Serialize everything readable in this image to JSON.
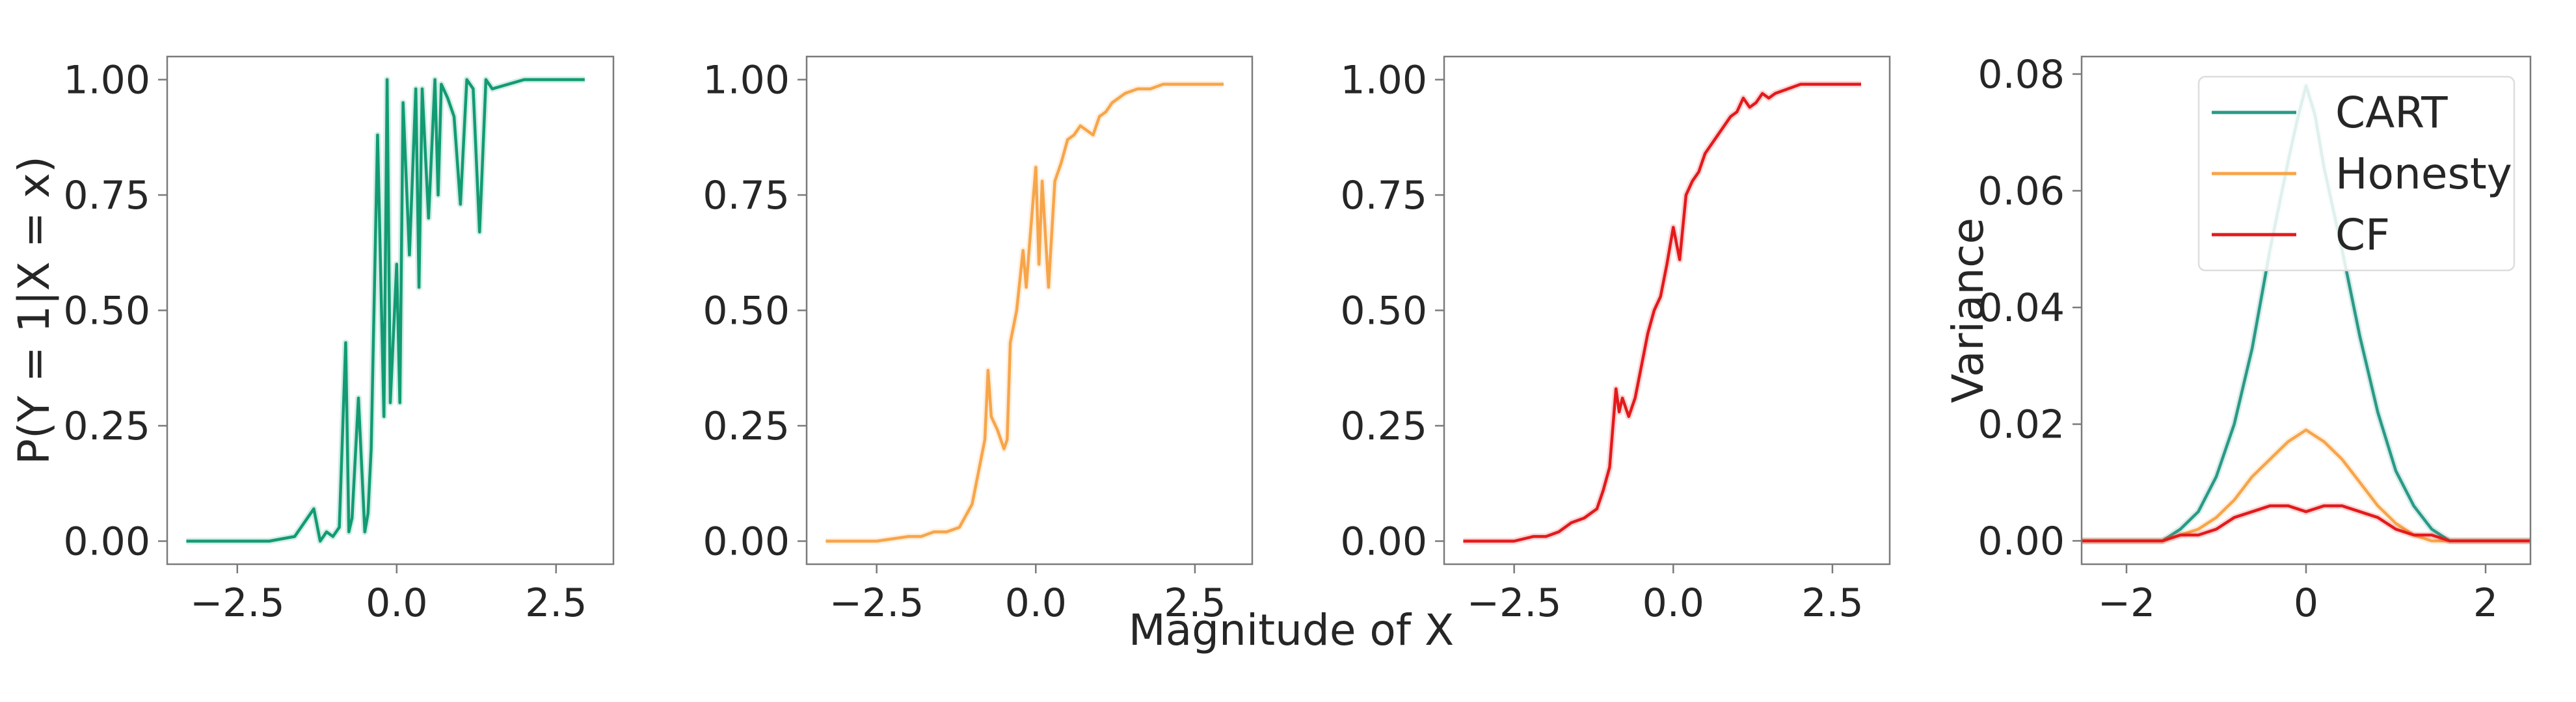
{
  "figure": {
    "shared_xlabel": "Magnitude of X"
  },
  "chart_data": [
    {
      "type": "line",
      "panel": "cart",
      "ylabel": "P(Y = 1|X = x)",
      "xlim": [
        -3.6,
        3.4
      ],
      "ylim": [
        -0.05,
        1.05
      ],
      "xticks": [
        -2.5,
        0.0,
        2.5
      ],
      "xtick_labels": [
        "−2.5",
        "0.0",
        "2.5"
      ],
      "yticks": [
        0.0,
        0.25,
        0.5,
        0.75,
        1.0
      ],
      "ytick_labels": [
        "0.00",
        "0.25",
        "0.50",
        "0.75",
        "1.00"
      ],
      "grid": false,
      "series": [
        {
          "color": "#129b73",
          "x": [
            -3.3,
            -2.0,
            -1.6,
            -1.3,
            -1.2,
            -1.1,
            -1.0,
            -0.9,
            -0.8,
            -0.75,
            -0.7,
            -0.6,
            -0.5,
            -0.45,
            -0.4,
            -0.3,
            -0.2,
            -0.15,
            -0.1,
            0.0,
            0.05,
            0.1,
            0.2,
            0.3,
            0.35,
            0.4,
            0.5,
            0.6,
            0.65,
            0.7,
            0.8,
            0.9,
            1.0,
            1.1,
            1.2,
            1.3,
            1.4,
            1.5,
            2.0,
            2.5,
            2.95
          ],
          "y": [
            0.0,
            0.0,
            0.01,
            0.07,
            0.0,
            0.02,
            0.01,
            0.03,
            0.43,
            0.02,
            0.05,
            0.31,
            0.02,
            0.06,
            0.2,
            0.88,
            0.27,
            1.0,
            0.3,
            0.6,
            0.3,
            0.95,
            0.62,
            0.98,
            0.55,
            0.98,
            0.7,
            1.0,
            0.75,
            0.99,
            0.96,
            0.92,
            0.73,
            1.0,
            0.98,
            0.67,
            1.0,
            0.98,
            1.0,
            1.0,
            1.0
          ]
        }
      ]
    },
    {
      "type": "line",
      "panel": "honesty",
      "xlim": [
        -3.6,
        3.4
      ],
      "ylim": [
        -0.05,
        1.05
      ],
      "xticks": [
        -2.5,
        0.0,
        2.5
      ],
      "xtick_labels": [
        "−2.5",
        "0.0",
        "2.5"
      ],
      "yticks": [
        0.0,
        0.25,
        0.5,
        0.75,
        1.0
      ],
      "ytick_labels": [
        "0.00",
        "0.25",
        "0.50",
        "0.75",
        "1.00"
      ],
      "grid": false,
      "series": [
        {
          "color": "#f7a54a",
          "x": [
            -3.3,
            -2.5,
            -2.0,
            -1.8,
            -1.6,
            -1.4,
            -1.2,
            -1.0,
            -0.9,
            -0.8,
            -0.75,
            -0.7,
            -0.6,
            -0.5,
            -0.45,
            -0.4,
            -0.3,
            -0.2,
            -0.15,
            -0.1,
            0.0,
            0.05,
            0.1,
            0.2,
            0.3,
            0.4,
            0.5,
            0.6,
            0.7,
            0.8,
            0.9,
            1.0,
            1.1,
            1.2,
            1.3,
            1.4,
            1.6,
            1.8,
            2.0,
            2.2,
            2.5,
            2.95
          ],
          "y": [
            0.0,
            0.0,
            0.01,
            0.01,
            0.02,
            0.02,
            0.03,
            0.08,
            0.15,
            0.22,
            0.37,
            0.27,
            0.24,
            0.2,
            0.22,
            0.43,
            0.5,
            0.63,
            0.55,
            0.64,
            0.81,
            0.6,
            0.78,
            0.55,
            0.78,
            0.82,
            0.87,
            0.88,
            0.9,
            0.89,
            0.88,
            0.92,
            0.93,
            0.95,
            0.96,
            0.97,
            0.98,
            0.98,
            0.99,
            0.99,
            0.99,
            0.99
          ]
        }
      ]
    },
    {
      "type": "line",
      "panel": "cf",
      "xlim": [
        -3.6,
        3.4
      ],
      "ylim": [
        -0.05,
        1.05
      ],
      "xticks": [
        -2.5,
        0.0,
        2.5
      ],
      "xtick_labels": [
        "−2.5",
        "0.0",
        "2.5"
      ],
      "yticks": [
        0.0,
        0.25,
        0.5,
        0.75,
        1.0
      ],
      "ytick_labels": [
        "0.00",
        "0.25",
        "0.50",
        "0.75",
        "1.00"
      ],
      "grid": false,
      "series": [
        {
          "color": "#e31a1c",
          "x": [
            -3.3,
            -2.5,
            -2.2,
            -2.0,
            -1.8,
            -1.6,
            -1.4,
            -1.2,
            -1.1,
            -1.0,
            -0.9,
            -0.85,
            -0.8,
            -0.7,
            -0.6,
            -0.5,
            -0.4,
            -0.3,
            -0.2,
            -0.1,
            0.0,
            0.1,
            0.2,
            0.3,
            0.4,
            0.5,
            0.6,
            0.7,
            0.8,
            0.9,
            1.0,
            1.1,
            1.2,
            1.3,
            1.4,
            1.5,
            1.6,
            1.8,
            2.0,
            2.5,
            2.95
          ],
          "y": [
            0.0,
            0.0,
            0.01,
            0.01,
            0.02,
            0.04,
            0.05,
            0.07,
            0.11,
            0.16,
            0.33,
            0.28,
            0.31,
            0.27,
            0.31,
            0.38,
            0.45,
            0.5,
            0.53,
            0.6,
            0.68,
            0.61,
            0.75,
            0.78,
            0.8,
            0.84,
            0.86,
            0.88,
            0.9,
            0.92,
            0.93,
            0.96,
            0.94,
            0.95,
            0.97,
            0.96,
            0.97,
            0.98,
            0.99,
            0.99,
            0.99
          ]
        }
      ]
    },
    {
      "type": "line",
      "panel": "variance",
      "ylabel": "Variance",
      "xlim": [
        -2.5,
        2.5
      ],
      "ylim": [
        -0.004,
        0.083
      ],
      "xticks": [
        -2,
        0,
        2
      ],
      "xtick_labels": [
        "−2",
        "0",
        "2"
      ],
      "yticks": [
        0.0,
        0.02,
        0.04,
        0.06,
        0.08
      ],
      "ytick_labels": [
        "0.00",
        "0.02",
        "0.04",
        "0.06",
        "0.08"
      ],
      "grid": false,
      "legend": {
        "position": "top-right",
        "entries": [
          {
            "name": "CART",
            "color": "#2a9a87"
          },
          {
            "name": "Honesty",
            "color": "#f7a54a"
          },
          {
            "name": "CF",
            "color": "#e31a1c"
          }
        ]
      },
      "series": [
        {
          "name": "CART",
          "color": "#2a9a87",
          "x": [
            -2.5,
            -2.0,
            -1.6,
            -1.4,
            -1.2,
            -1.0,
            -0.8,
            -0.6,
            -0.4,
            -0.2,
            -0.1,
            0.0,
            0.1,
            0.2,
            0.4,
            0.6,
            0.8,
            1.0,
            1.2,
            1.4,
            1.6,
            2.0,
            2.5
          ],
          "y": [
            0.0,
            0.0,
            0.0,
            0.002,
            0.005,
            0.011,
            0.02,
            0.033,
            0.05,
            0.065,
            0.072,
            0.078,
            0.073,
            0.064,
            0.05,
            0.035,
            0.022,
            0.012,
            0.006,
            0.002,
            0.0,
            0.0,
            0.0
          ]
        },
        {
          "name": "Honesty",
          "color": "#f7a54a",
          "x": [
            -2.5,
            -2.0,
            -1.6,
            -1.4,
            -1.2,
            -1.0,
            -0.8,
            -0.6,
            -0.4,
            -0.2,
            -0.1,
            0.0,
            0.1,
            0.2,
            0.4,
            0.6,
            0.8,
            1.0,
            1.2,
            1.4,
            1.6,
            2.0,
            2.5
          ],
          "y": [
            0.0,
            0.0,
            0.0,
            0.001,
            0.002,
            0.004,
            0.007,
            0.011,
            0.014,
            0.017,
            0.018,
            0.019,
            0.018,
            0.017,
            0.014,
            0.01,
            0.006,
            0.003,
            0.001,
            0.0,
            0.0,
            0.0,
            0.0
          ]
        },
        {
          "name": "CF",
          "color": "#e31a1c",
          "x": [
            -2.5,
            -2.0,
            -1.6,
            -1.4,
            -1.2,
            -1.0,
            -0.8,
            -0.6,
            -0.4,
            -0.2,
            0.0,
            0.2,
            0.4,
            0.6,
            0.8,
            1.0,
            1.2,
            1.4,
            1.6,
            2.0,
            2.5
          ],
          "y": [
            0.0,
            0.0,
            0.0,
            0.001,
            0.001,
            0.002,
            0.004,
            0.005,
            0.006,
            0.006,
            0.005,
            0.006,
            0.006,
            0.005,
            0.004,
            0.002,
            0.001,
            0.001,
            0.0,
            0.0,
            0.0
          ]
        }
      ]
    }
  ]
}
